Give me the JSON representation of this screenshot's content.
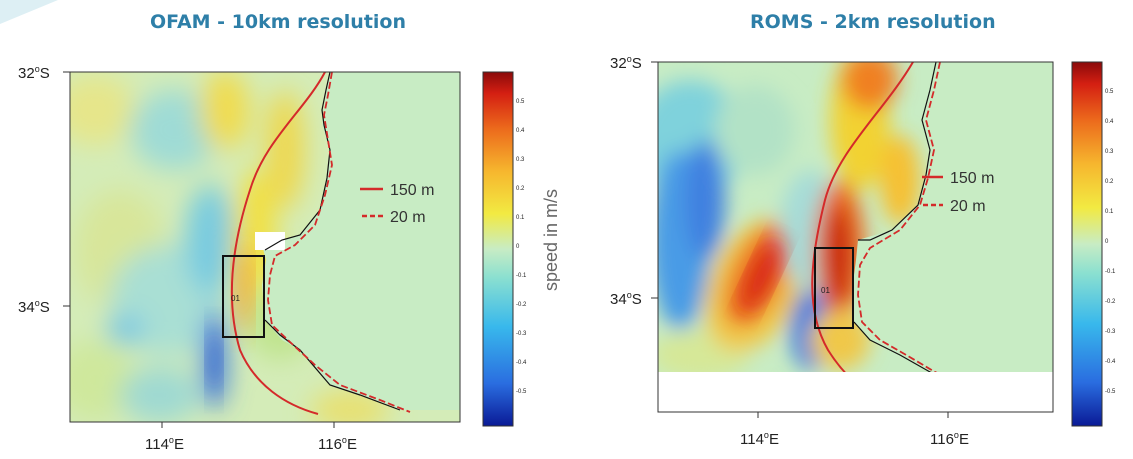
{
  "panels": [
    {
      "title": "OFAM - 10km resolution",
      "lat_labels": {
        "north": "32",
        "south": "34",
        "suffix": "S"
      },
      "lon_labels": {
        "west": "114",
        "east": "116",
        "suffix": "E"
      },
      "degree_symbol": "o",
      "legend": {
        "line1": "150 m",
        "line2": "20 m"
      },
      "box_label": "01",
      "colorbar_ticks": [
        "0.5",
        "0.4",
        "0.3",
        "0.2",
        "0.1",
        "0",
        "-0.1",
        "-0.2",
        "-0.3",
        "-0.4",
        "-0.5"
      ],
      "colorbar_label": "speed in m/s"
    },
    {
      "title": "ROMS - 2km resolution",
      "lat_labels": {
        "north": "32",
        "south": "34",
        "suffix": "S"
      },
      "lon_labels": {
        "west": "114",
        "east": "116",
        "suffix": "E"
      },
      "degree_symbol": "o",
      "legend": {
        "line1": "150 m",
        "line2": "20 m"
      },
      "box_label": "01",
      "colorbar_ticks": [
        "0.5",
        "0.4",
        "0.3",
        "0.2",
        "0.1",
        "0",
        "-0.1",
        "-0.2",
        "-0.3",
        "-0.4",
        "-0.5"
      ]
    }
  ],
  "colors": {
    "title": "#2e7fa8",
    "land": "#c8ecc4",
    "isobath": "#d42a2a",
    "colormap": [
      "#0a1a96",
      "#2a6de0",
      "#38b8ec",
      "#8be0d0",
      "#c8ecc4",
      "#f2ea42",
      "#f6b62e",
      "#ec6a1c",
      "#d41f12",
      "#8a0a0a"
    ]
  }
}
